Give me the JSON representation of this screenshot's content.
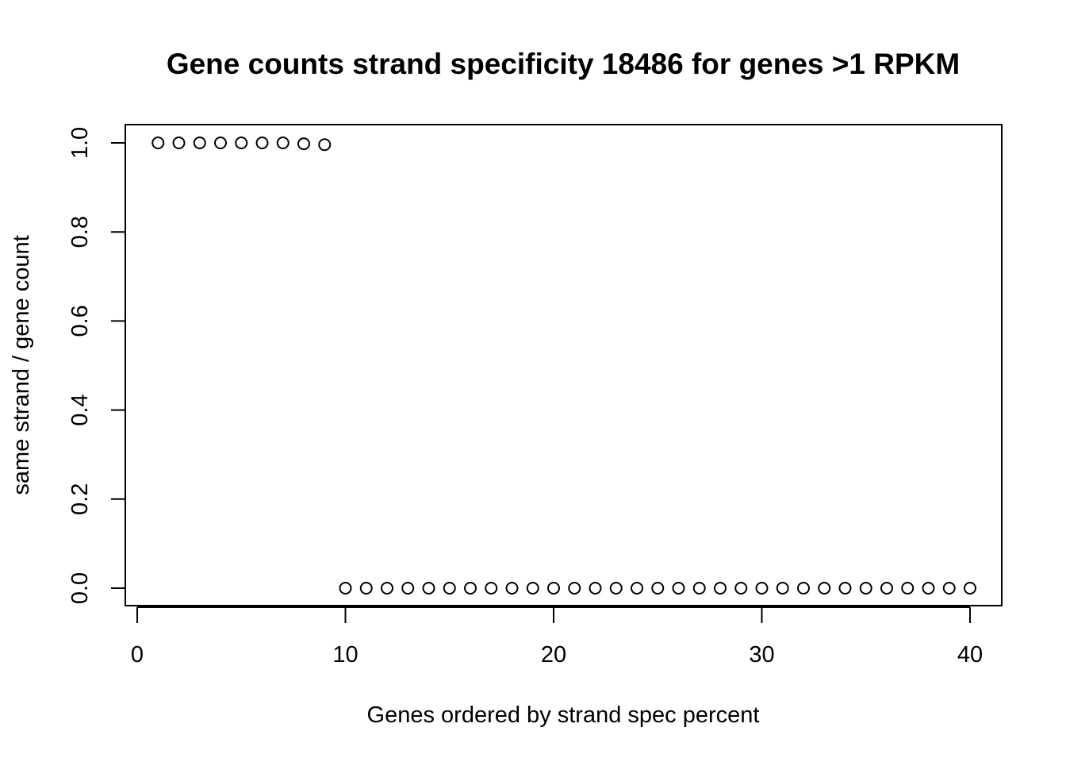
{
  "chart_data": {
    "type": "scatter",
    "title": "Gene counts strand specificity 18486 for genes >1 RPKM",
    "xlabel": "Genes ordered by strand spec percent",
    "ylabel": "same strand / gene count",
    "xlim": [
      0,
      40
    ],
    "ylim": [
      0,
      1
    ],
    "x_ticks": [
      0,
      10,
      20,
      30,
      40
    ],
    "x_tick_labels": [
      "0",
      "10",
      "20",
      "30",
      "40"
    ],
    "y_ticks": [
      0,
      0.2,
      0.4,
      0.6,
      0.8,
      1.0
    ],
    "y_tick_labels": [
      "0.0",
      "0.2",
      "0.4",
      "0.6",
      "0.8",
      "1.0"
    ],
    "grid": false,
    "legend": "none",
    "marker": "open-circle",
    "x": [
      1,
      2,
      3,
      4,
      5,
      6,
      7,
      8,
      9,
      10,
      11,
      12,
      13,
      14,
      15,
      16,
      17,
      18,
      19,
      20,
      21,
      22,
      23,
      24,
      25,
      26,
      27,
      28,
      29,
      30,
      31,
      32,
      33,
      34,
      35,
      36,
      37,
      38,
      39,
      40
    ],
    "y": [
      1.0,
      1.0,
      1.0,
      1.0,
      1.0,
      1.0,
      1.0,
      0.998,
      0.996,
      0,
      0,
      0,
      0,
      0,
      0,
      0,
      0,
      0,
      0,
      0,
      0,
      0,
      0,
      0,
      0,
      0,
      0,
      0,
      0,
      0,
      0,
      0,
      0,
      0,
      0,
      0,
      0,
      0,
      0,
      0
    ]
  }
}
